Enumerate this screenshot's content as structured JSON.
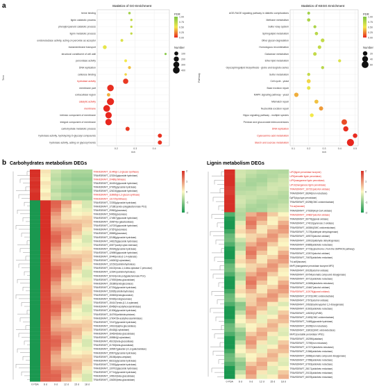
{
  "panel_a": {
    "label": "a",
    "go": {
      "title": "Statistics of GO Enrichment",
      "ylabel": "Term",
      "xlabel": "rich",
      "xticks": [
        "0.2",
        "0.3",
        "0.4"
      ],
      "legend_fdr_title": "FDR",
      "legend_fdr_ticks": [
        "1.00",
        "0.75",
        "0.50",
        "0.25",
        "0.00"
      ],
      "legend_num_title": "Number",
      "legend_num_values": [
        "100",
        "200",
        "300",
        "400"
      ],
      "terms": [
        {
          "name": "heme binding",
          "red": false
        },
        {
          "name": "lignin catabolic process",
          "red": false
        },
        {
          "name": "phenylpropanoid catabolic process",
          "red": false
        },
        {
          "name": "lignin metabolic process",
          "red": false
        },
        {
          "name": "oxidoreductase activity, acting on peroxide as acceptor",
          "red": false
        },
        {
          "name": "transmembrane transport",
          "red": false
        },
        {
          "name": "structural constituent of cell wall",
          "red": false
        },
        {
          "name": "peroxidase activity",
          "red": false
        },
        {
          "name": "DNA replication",
          "red": false
        },
        {
          "name": "cellulose binding",
          "red": false
        },
        {
          "name": "hydrolase activity",
          "red": true
        },
        {
          "name": "membrane part",
          "red": false
        },
        {
          "name": "extracellular region",
          "red": false
        },
        {
          "name": "catalytic activity",
          "red": true
        },
        {
          "name": "membrane",
          "red": true
        },
        {
          "name": "intrinsic component of membrane",
          "red": false
        },
        {
          "name": "integral component of membrane",
          "red": false
        },
        {
          "name": "carbohydrate metabolic process",
          "red": false
        },
        {
          "name": "hydrolase activity, hydrolyzing O-glycosyl compounds",
          "red": false
        },
        {
          "name": "hydrolase activity, acting on glycosyl bonds",
          "red": false
        }
      ]
    },
    "kegg": {
      "title": "Statistics of KEGG Enrichment",
      "ylabel": "Pathway",
      "xlabel": "rich",
      "xticks": [
        "0.1",
        "0.2",
        "0.3",
        "0.4",
        "0.5"
      ],
      "legend_fdr_title": "FDR",
      "legend_fdr_ticks": [
        "1.00",
        "0.75",
        "0.50",
        "0.25",
        "0.00"
      ],
      "legend_num_title": "Number",
      "legend_num_values": [
        "20",
        "40",
        "60"
      ],
      "terms": [
        {
          "name": "AGE-RAGE signaling pathway in diabetic complications",
          "red": false
        },
        {
          "name": "Methane metabolism",
          "red": false
        },
        {
          "name": "Sulfur relay system",
          "red": false
        },
        {
          "name": "Sphingolipid metabolism",
          "red": false
        },
        {
          "name": "Other glycan degradation",
          "red": false
        },
        {
          "name": "Homologous recombination",
          "red": false
        },
        {
          "name": "Galactose metabolism",
          "red": false
        },
        {
          "name": "Ether lipid metabolism",
          "red": false
        },
        {
          "name": "Glycosphingolipid biosynthesis - globo and isoglobo series",
          "red": false
        },
        {
          "name": "Sulfur metabolism",
          "red": false
        },
        {
          "name": "Cell cycle - yeast",
          "red": false
        },
        {
          "name": "Base excision repair",
          "red": false
        },
        {
          "name": "MAPK signaling pathway - yeast",
          "red": false
        },
        {
          "name": "Mismatch repair",
          "red": false
        },
        {
          "name": "Nucleotide excision repair",
          "red": false
        },
        {
          "name": "Hippo signaling pathway - multiple species",
          "red": false
        },
        {
          "name": "Pentose and glucuronate interconversions",
          "red": false
        },
        {
          "name": "DNA replication",
          "red": true
        },
        {
          "name": "Cyanoamino acid metabolism",
          "red": true
        },
        {
          "name": "Starch and sucrose metabolism",
          "red": true
        }
      ]
    }
  },
  "panel_b": {
    "label": "b",
    "carb": {
      "title": "Carbohydrates metabolism DEGs",
      "columns": [
        "0 PDA",
        "6 d",
        "9 d",
        "12 d",
        "15 d",
        "18 d"
      ],
      "scale_ticks": [
        "2",
        "1",
        "0",
        "-1",
        "-2"
      ],
      "genes": [
        {
          "name": "TRAVEDRAFT_31449(β-1,3-glucan synthase)",
          "red": true
        },
        {
          "name": "TRAVEDRAFT_123244(glycoside hydrolase)",
          "red": false
        },
        {
          "name": "TRAVEDRAFT_20489(chitinase)",
          "red": true
        },
        {
          "name": "TRAVEDRAFT_164154(glycoside hydrolase)",
          "red": false
        },
        {
          "name": "TRAVEDRAFT_37925(glycoside hydrolase)",
          "red": false
        },
        {
          "name": "TRAVEDRAFT_126216(glycoside hydrolase)",
          "red": false
        },
        {
          "name": "TRAVEDRAFT_118985(β-1,3-glucan synthase)",
          "red": true
        },
        {
          "name": "TRAVEDRAFT_131725(chitinase)",
          "red": true
        },
        {
          "name": "TRAVEDRAFT_72253(glycoside hydrolase)",
          "red": false
        },
        {
          "name": "TRAVEDRAFT_171881(endo-polygalacturonase PG1)",
          "red": false
        },
        {
          "name": "TRAVEDRAFT_29962(glucanase)",
          "red": false
        },
        {
          "name": "TRAVEDRAFT_54963(glucanase)",
          "red": false
        },
        {
          "name": "TRAVEDRAFT_174557(glycoside hydrolase)",
          "red": false
        },
        {
          "name": "TRAVEDRAFT_159874(α-galactosidase)",
          "red": false
        },
        {
          "name": "TRAVEDRAFT_147020(glycoside hydrolase)",
          "red": false
        },
        {
          "name": "TRAVEDRAFT_37357(glucanase)",
          "red": false
        },
        {
          "name": "TRAVEDRAFT_28569(glucanase)",
          "red": false
        },
        {
          "name": "TRAVEDRAFT_32188(glycoside hydrolase)",
          "red": false
        },
        {
          "name": "TRAVEDRAFT_148125(glycoside hydrolase)",
          "red": false
        },
        {
          "name": "TRAVEDRAFT_40877(acetyl xylan esterase)",
          "red": false
        },
        {
          "name": "TRAVEDRAFT_35034(glycoside hydrolase)",
          "red": false
        },
        {
          "name": "TRAVEDRAFT_126980(glycoside hydrolase)",
          "red": false
        },
        {
          "name": "TRAVEDRAFT_30446(endo-β-1,4-xylanase)",
          "red": false
        },
        {
          "name": "TRAVEDRAFT_146263(β-xylosidase)",
          "red": false
        },
        {
          "name": "TRAVEDRAFT_121532(cellobiohydrolase)",
          "red": false
        },
        {
          "name": "TRAVEDRAFT_34102(endo-1,4-beta-xylanase C precursor)",
          "red": false
        },
        {
          "name": "TRAVEDRAFT_123941(cellobiohydrolase)",
          "red": false
        },
        {
          "name": "TRAVEDRAFT_82414(endo-polygalacturonase PG1)",
          "red": false
        },
        {
          "name": "TRAVEDRAFT_170930(beta-glucosidase)",
          "red": false
        },
        {
          "name": "TRAVEDRAFT_151880(endoglucanase)",
          "red": false
        },
        {
          "name": "TRAVEDRAFT_67234(glycoside hydrolase)",
          "red": false
        },
        {
          "name": "TRAVEDRAFT_53935(cellobiohydrolase)",
          "red": false
        },
        {
          "name": "TRAVEDRAFT_150606(endoglucanase)",
          "red": false
        },
        {
          "name": "TRAVEDRAFT_50426(endoglucanase)",
          "red": false
        },
        {
          "name": "TRAVEDRAFT_154147(endo-β-1,4-xylanase)",
          "red": false
        },
        {
          "name": "TRAVEDRAFT_65456(N-acetylhexosaminidase)",
          "red": false
        },
        {
          "name": "TRAVEDRAFT_61306(glycoside hydrolase)",
          "red": false
        },
        {
          "name": "TRAVEDRAFT_116790(cellobiohydrolase)",
          "red": false
        },
        {
          "name": "TRAVEDRAFT_170047(N-acetylhexosaminidase)",
          "red": false
        },
        {
          "name": "TRAVEDRAFT_72167(glycoside hydrolase)",
          "red": false
        },
        {
          "name": "TRAVEDRAFT_146133(alpha-glucosidase)",
          "red": false
        },
        {
          "name": "TRAVEDRAFT_45418(β-xylosidase)",
          "red": false
        },
        {
          "name": "TRAVEDRAFT_164634(beta-glucosidase)",
          "red": false
        },
        {
          "name": "TRAVEDRAFT_155584(β-xylosidase)",
          "red": false
        },
        {
          "name": "TRAVEDRAFT_46102(beta-glucosidase)",
          "red": false
        },
        {
          "name": "TRAVEDRAFT_41763(beta-glucosidase)",
          "red": false
        },
        {
          "name": "TRAVEDRAFT_165957(galactan β-1,3-galactosidase)",
          "red": false
        },
        {
          "name": "TRAVEDRAFT_65507(glycoside hydrolase)",
          "red": false
        },
        {
          "name": "TRAVEDRAFT_28158(alpha-amylase)",
          "red": false
        },
        {
          "name": "TRAVEDRAFT_68212(glycoside hydrolase)",
          "red": false
        },
        {
          "name": "TRAVEDRAFT_72053(glycoside hydrolase)",
          "red": false
        },
        {
          "name": "TRAVEDRAFT_130702(glycoside hydrolase)",
          "red": false
        },
        {
          "name": "TRAVEDRAFT_37714(glycoside hydrolase)",
          "red": false
        },
        {
          "name": "TRAVEDRAFT_145610(beta-glucosidase)",
          "red": false
        },
        {
          "name": "TRAVEDRAFT_136250(beta-glucosidase)",
          "red": false
        }
      ]
    },
    "lignin": {
      "title": "Lignin metabolism DEGs",
      "columns": [
        "0 PDA",
        "6 d",
        "9 d",
        "12 d",
        "15 d",
        "18 d"
      ],
      "scale_ticks": [
        "2",
        "1",
        "0",
        "-1",
        "-2"
      ],
      "genes": [
        {
          "name": "LiP2(lignin peroxidase isozyme)",
          "red": true
        },
        {
          "name": "LiP8(versatile lignin peroxidase)",
          "red": true
        },
        {
          "name": "LiP9(manganese lignin peroxidase)",
          "red": true
        },
        {
          "name": "LiP10(manganese lignin peroxidase)",
          "red": true
        },
        {
          "name": "TRAVEDRAFT_167151(alcohol oxidase)",
          "red": true
        },
        {
          "name": "TRAVEDRAFT_68246(iron reductase)",
          "red": false
        },
        {
          "name": "DyP2(dyp-type peroxidase)",
          "red": false
        },
        {
          "name": "TRAVEDRAFT_60298(GMC oxidoreductase)",
          "red": false
        },
        {
          "name": "TvLac(laccase)",
          "red": true
        },
        {
          "name": "TRAVEDRAFT_170339(Acyl-CoA oxidase)",
          "red": false
        },
        {
          "name": "TRAVEDRAFT_144837(alcohol oxidase)",
          "red": true
        },
        {
          "name": "TRAVEDRAFT_66776(glyoxal oxidase)",
          "red": false
        },
        {
          "name": "TRAVEDRAFT_174013(pyranose 2-oxidase)",
          "red": false
        },
        {
          "name": "TRAVEDRAFT_163084(GMC oxidoreductase)",
          "red": false
        },
        {
          "name": "TRAVEDRAFT_71729(aldehyde dehydrogenase)",
          "red": false
        },
        {
          "name": "TRAVEDRAFT_169373(alcohol oxidase)",
          "red": false
        },
        {
          "name": "TRAVEDRAFT_130913(aldehyde dehydrogenase)",
          "red": false
        },
        {
          "name": "TRAVEDRAFT_60865(aldo/keto reductase)",
          "red": false
        },
        {
          "name": "TRAVEDRAFT_37723(cytochrome c from the GMPHOS pathway)",
          "red": false
        },
        {
          "name": "TRAVEDRAFT_122674(alcohol oxidase)",
          "red": false
        },
        {
          "name": "TRAVEDRAFT_70675(aldo/keto reductase)",
          "red": false
        },
        {
          "name": "TvLac5(laccase)",
          "red": false
        },
        {
          "name": "MnP1(manganese peroxidase isozyme MP2)",
          "red": false
        },
        {
          "name": "TRAVEDRAFT_60165(alcohol oxidase)",
          "red": false
        },
        {
          "name": "TRAVEDRAFT_60764(aromatic compound dioxygenase)",
          "red": false
        },
        {
          "name": "TRAVEDRAFT_30712(aldo/keto reductase)",
          "red": false
        },
        {
          "name": "TRAVEDRAFT_112686(aldo/keto reductase)",
          "red": false
        },
        {
          "name": "TRAVEDRAFT_134467(alcohol oxidase)",
          "red": false
        },
        {
          "name": "TRAVEDRAFT_112078(glyoxal oxidase)",
          "red": true
        },
        {
          "name": "TRAVEDRAFT_67372(GMC oxidoreductase)",
          "red": false
        },
        {
          "name": "TRAVEDRAFT_27673(alcohol oxidase)",
          "red": false
        },
        {
          "name": "TRAVEDRAFT_20633(hydroxyquinol 1,2-dioxygenase)",
          "red": false
        },
        {
          "name": "TRAVEDRAFT_61602(aldo/keto reductase)",
          "red": false
        },
        {
          "name": "TRAVEDRAFT_145230(CyP450)",
          "red": false
        },
        {
          "name": "TRAVEDRAFT_21693(GMC oxidoreductase)",
          "red": false
        },
        {
          "name": "TRAVEDRAFT_74469(glycoside hydrolase)",
          "red": false
        },
        {
          "name": "TRAVEDRAFT_30295(iron reductase)",
          "red": false
        },
        {
          "name": "TRAVEDRAFT_118032(GMC oxidoreductase)",
          "red": false
        },
        {
          "name": "MnP11(versatile peroxidase VPS1)",
          "red": false
        },
        {
          "name": "TRAVEDRAFT_152396(catalase)",
          "red": false
        },
        {
          "name": "TRAVEDRAFT_72769(iron reductase)",
          "red": false
        },
        {
          "name": "TRAVEDRAFT_117372(aldo/keto reductase)",
          "red": false
        },
        {
          "name": "TRAVEDRAFT_21566(aldo/keto reductase)",
          "red": false
        },
        {
          "name": "TRAVEDRAFT_26966(aromatic compound dioxygenase)",
          "red": false
        },
        {
          "name": "TRAVEDRAFT_27958(aldo/keto reductase)",
          "red": false
        },
        {
          "name": "TRAVEDRAFT_67003(aldo/keto reductase)",
          "red": false
        },
        {
          "name": "TRAVEDRAFT_28171(aldo/keto reductase)",
          "red": false
        },
        {
          "name": "TRAVEDRAFT_20133(aldo/keto reductase)",
          "red": false
        },
        {
          "name": "TRAVEDRAFT_66078(aldo/keto reductase)",
          "red": false
        }
      ]
    }
  },
  "chart_data": [
    {
      "type": "scatter",
      "title": "Statistics of GO Enrichment",
      "xlabel": "rich",
      "ylabel": "Term",
      "xlim": [
        0.1,
        0.48
      ],
      "categories": [
        "heme binding",
        "lignin catabolic process",
        "phenylpropanoid catabolic process",
        "lignin metabolic process",
        "oxidoreductase activity, acting on peroxide as acceptor",
        "transmembrane transport",
        "structural constituent of cell wall",
        "peroxidase activity",
        "DNA replication",
        "cellulose binding",
        "hydrolase activity",
        "membrane part",
        "extracellular region",
        "catalytic activity",
        "membrane",
        "intrinsic component of membrane",
        "integral component of membrane",
        "carbohydrate metabolic process",
        "hydrolase activity, hydrolyzing O-glycosyl compounds",
        "hydrolase activity, acting on glycosyl bonds"
      ],
      "rich": [
        0.27,
        0.28,
        0.28,
        0.28,
        0.23,
        0.14,
        0.46,
        0.25,
        0.27,
        0.25,
        0.25,
        0.17,
        0.16,
        0.17,
        0.15,
        0.16,
        0.16,
        0.26,
        0.43,
        0.43
      ],
      "number": [
        20,
        15,
        15,
        15,
        30,
        90,
        10,
        30,
        40,
        20,
        220,
        380,
        60,
        460,
        400,
        360,
        360,
        110,
        110,
        110
      ],
      "fdr": [
        0.85,
        0.7,
        0.7,
        0.7,
        0.6,
        0.55,
        0.95,
        0.5,
        0.4,
        0.45,
        0.05,
        0.02,
        0.35,
        0.01,
        0.0,
        0.0,
        0.0,
        0.05,
        0.03,
        0.03
      ],
      "legend": "right"
    },
    {
      "type": "scatter",
      "title": "Statistics of KEGG Enrichment",
      "xlabel": "rich",
      "ylabel": "Pathway",
      "xlim": [
        0.08,
        0.52
      ],
      "categories": [
        "AGE-RAGE signaling pathway in diabetic complications",
        "Methane metabolism",
        "Sulfur relay system",
        "Sphingolipid metabolism",
        "Other glycan degradation",
        "Homologous recombination",
        "Galactose metabolism",
        "Ether lipid metabolism",
        "Glycosphingolipid biosynthesis - globo and isoglobo series",
        "Sulfur metabolism",
        "Cell cycle - yeast",
        "Base excision repair",
        "MAPK signaling pathway - yeast",
        "Mismatch repair",
        "Nucleotide excision repair",
        "Hippo signaling pathway - multiple species",
        "Pentose and glucuronate interconversions",
        "DNA replication",
        "Cyanoamino acid metabolism",
        "Starch and sucrose metabolism"
      ],
      "rich": [
        0.2,
        0.2,
        0.24,
        0.25,
        0.29,
        0.27,
        0.24,
        0.4,
        0.29,
        0.2,
        0.2,
        0.2,
        0.12,
        0.25,
        0.28,
        0.22,
        0.43,
        0.44,
        0.5,
        0.47
      ],
      "number": [
        5,
        8,
        6,
        8,
        12,
        10,
        10,
        6,
        6,
        6,
        14,
        10,
        18,
        14,
        16,
        12,
        35,
        30,
        20,
        65
      ],
      "fdr": [
        0.85,
        0.8,
        0.8,
        0.75,
        0.7,
        0.7,
        0.7,
        0.6,
        0.75,
        0.7,
        0.45,
        0.55,
        0.35,
        0.4,
        0.3,
        0.5,
        0.1,
        0.02,
        0.01,
        0.0
      ],
      "legend": "right"
    }
  ]
}
